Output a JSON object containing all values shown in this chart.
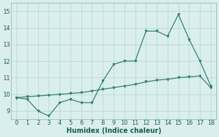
{
  "xlabel": "Humidex (Indice chaleur)",
  "x": [
    0,
    1,
    2,
    3,
    4,
    5,
    6,
    7,
    8,
    9,
    10,
    11,
    12,
    13,
    14,
    15,
    16,
    17,
    18
  ],
  "line1_y": [
    9.8,
    9.7,
    9.0,
    8.7,
    9.5,
    9.7,
    9.5,
    9.5,
    10.8,
    11.8,
    12.0,
    12.0,
    13.8,
    13.8,
    13.5,
    14.8,
    13.3,
    12.0,
    10.5
  ],
  "line2_y": [
    9.8,
    9.85,
    9.9,
    9.95,
    10.0,
    10.05,
    10.1,
    10.2,
    10.3,
    10.4,
    10.5,
    10.6,
    10.75,
    10.85,
    10.9,
    11.0,
    11.05,
    11.1,
    10.4
  ],
  "line_color": "#2e7d6e",
  "bg_color": "#daeeed",
  "grid_color": "#b8d8d4",
  "xlim": [
    -0.5,
    18.5
  ],
  "ylim": [
    8.5,
    15.5
  ],
  "yticks": [
    9,
    10,
    11,
    12,
    13,
    14,
    15
  ],
  "xticks": [
    0,
    1,
    2,
    3,
    4,
    5,
    6,
    7,
    8,
    9,
    10,
    11,
    12,
    13,
    14,
    15,
    16,
    17,
    18
  ],
  "tick_fontsize": 6.0,
  "xlabel_fontsize": 7.0
}
